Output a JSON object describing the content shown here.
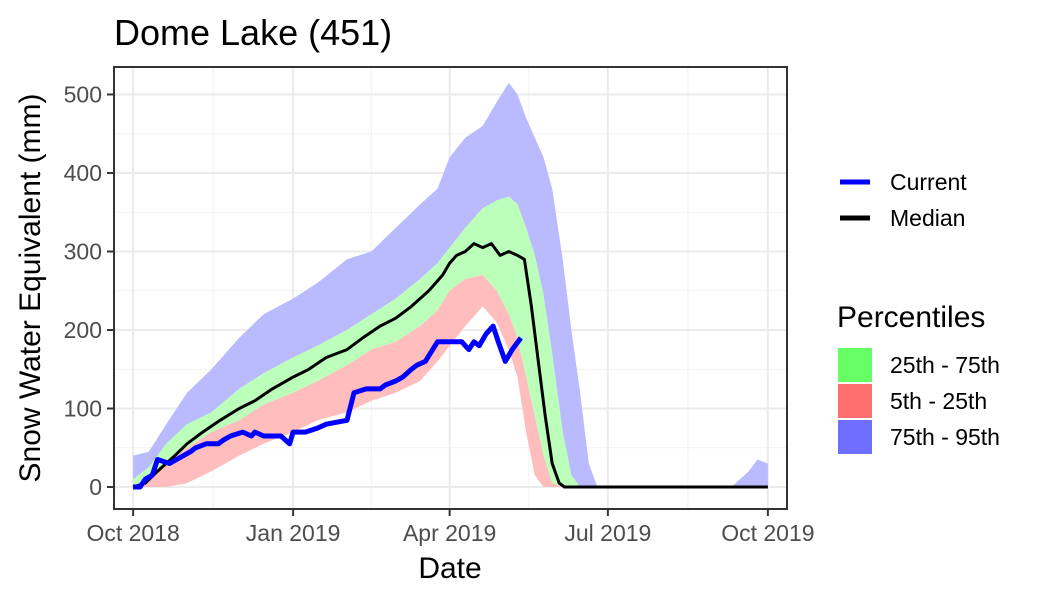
{
  "chart_data": {
    "type": "line",
    "title": "Dome Lake (451)",
    "xlabel": "Date",
    "ylabel": "Snow Water Equivalent (mm)",
    "xlim": [
      "2018-09-20",
      "2019-10-12"
    ],
    "ylim": [
      -28,
      535
    ],
    "x_ticks": [
      "2018-10-01",
      "2019-01-01",
      "2019-04-01",
      "2019-07-01",
      "2019-10-01"
    ],
    "x_tick_labels": [
      "Oct 2018",
      "Jan 2019",
      "Apr 2019",
      "Jul 2019",
      "Oct 2019"
    ],
    "y_ticks": [
      0,
      100,
      200,
      300,
      400,
      500
    ],
    "y_tick_labels": [
      "0",
      "100",
      "200",
      "300",
      "400",
      "500"
    ],
    "grid": true,
    "legend_placement": "right",
    "lines_legend": [
      {
        "label": "Current",
        "color": "#0000ff"
      },
      {
        "label": "Median",
        "color": "#000000"
      }
    ],
    "bands_legend_title": "Percentiles",
    "bands_legend": [
      {
        "label": "25th - 75th",
        "color": "#66ff66"
      },
      {
        "label": "5th - 25th",
        "color": "#ff6f6f"
      },
      {
        "label": "75th - 95th",
        "color": "#6f6fff"
      }
    ],
    "band_colors": {
      "p75_95": "#babaff",
      "p25_75": "#bbffbb",
      "p5_25": "#ffbdbd"
    },
    "bands": {
      "x": [
        "2018-10-01",
        "2018-10-10",
        "2018-10-20",
        "2018-11-01",
        "2018-11-15",
        "2018-12-01",
        "2018-12-15",
        "2019-01-01",
        "2019-01-15",
        "2019-02-01",
        "2019-02-15",
        "2019-03-01",
        "2019-03-15",
        "2019-03-25",
        "2019-04-01",
        "2019-04-10",
        "2019-04-20",
        "2019-04-28",
        "2019-05-05",
        "2019-05-10",
        "2019-05-15",
        "2019-05-20",
        "2019-05-25",
        "2019-05-30",
        "2019-06-05",
        "2019-06-10",
        "2019-06-15",
        "2019-06-20",
        "2019-06-25"
      ],
      "p95": [
        40,
        45,
        80,
        120,
        150,
        190,
        220,
        240,
        260,
        290,
        300,
        330,
        360,
        380,
        420,
        445,
        460,
        490,
        515,
        500,
        470,
        445,
        420,
        380,
        290,
        200,
        120,
        30,
        0
      ],
      "p75": [
        10,
        25,
        55,
        80,
        95,
        125,
        145,
        165,
        180,
        200,
        220,
        240,
        265,
        285,
        305,
        330,
        355,
        365,
        370,
        360,
        330,
        295,
        245,
        170,
        70,
        15,
        0,
        0,
        0
      ],
      "p25": [
        0,
        10,
        30,
        50,
        70,
        85,
        105,
        120,
        135,
        155,
        175,
        185,
        205,
        225,
        250,
        265,
        270,
        250,
        220,
        190,
        140,
        90,
        40,
        5,
        0,
        0,
        0,
        0,
        0
      ],
      "p5": [
        0,
        0,
        0,
        5,
        20,
        40,
        55,
        70,
        85,
        95,
        110,
        120,
        135,
        160,
        180,
        205,
        230,
        210,
        175,
        140,
        70,
        15,
        0,
        0,
        0,
        0,
        0,
        0,
        0
      ]
    },
    "late_band": {
      "x": [
        "2019-09-10",
        "2019-09-20",
        "2019-09-25",
        "2019-10-01"
      ],
      "p95": [
        0,
        20,
        35,
        30
      ],
      "p75": [
        0,
        0,
        0,
        0
      ]
    },
    "series": [
      {
        "name": "Current",
        "color": "#0000ff",
        "x": [
          "2018-10-01",
          "2018-10-05",
          "2018-10-08",
          "2018-10-12",
          "2018-10-15",
          "2018-10-22",
          "2018-10-26",
          "2018-11-03",
          "2018-11-06",
          "2018-11-12",
          "2018-11-19",
          "2018-11-22",
          "2018-11-26",
          "2018-12-03",
          "2018-12-08",
          "2018-12-10",
          "2018-12-15",
          "2018-12-25",
          "2018-12-30",
          "2019-01-01",
          "2019-01-08",
          "2019-01-15",
          "2019-01-20",
          "2019-02-01",
          "2019-02-05",
          "2019-02-12",
          "2019-02-20",
          "2019-02-23",
          "2019-03-01",
          "2019-03-05",
          "2019-03-10",
          "2019-03-13",
          "2019-03-18",
          "2019-03-25",
          "2019-04-01",
          "2019-04-08",
          "2019-04-12",
          "2019-04-15",
          "2019-04-18",
          "2019-04-22",
          "2019-04-26",
          "2019-04-29",
          "2019-05-03",
          "2019-05-07",
          "2019-05-12"
        ],
        "y": [
          0,
          0,
          10,
          15,
          35,
          30,
          35,
          45,
          50,
          55,
          55,
          60,
          65,
          70,
          65,
          70,
          65,
          65,
          55,
          70,
          70,
          75,
          80,
          85,
          120,
          125,
          125,
          130,
          135,
          140,
          150,
          155,
          160,
          185,
          185,
          185,
          175,
          185,
          180,
          195,
          205,
          185,
          160,
          175,
          190
        ]
      },
      {
        "name": "Median",
        "color": "#000000",
        "x": [
          "2018-10-01",
          "2018-10-08",
          "2018-10-15",
          "2018-10-25",
          "2018-11-01",
          "2018-11-10",
          "2018-11-20",
          "2018-12-01",
          "2018-12-10",
          "2018-12-20",
          "2019-01-01",
          "2019-01-10",
          "2019-01-20",
          "2019-02-01",
          "2019-02-10",
          "2019-02-20",
          "2019-03-01",
          "2019-03-10",
          "2019-03-20",
          "2019-03-28",
          "2019-04-01",
          "2019-04-05",
          "2019-04-10",
          "2019-04-15",
          "2019-04-20",
          "2019-04-25",
          "2019-04-30",
          "2019-05-05",
          "2019-05-10",
          "2019-05-14",
          "2019-05-18",
          "2019-05-22",
          "2019-05-26",
          "2019-05-30",
          "2019-06-03",
          "2019-06-06",
          "2019-06-10",
          "2019-06-15",
          "2019-07-01",
          "2019-10-01"
        ],
        "y": [
          0,
          5,
          20,
          40,
          55,
          70,
          85,
          100,
          110,
          125,
          140,
          150,
          165,
          175,
          190,
          205,
          215,
          230,
          250,
          270,
          285,
          295,
          300,
          310,
          305,
          310,
          295,
          300,
          295,
          290,
          230,
          160,
          90,
          30,
          5,
          0,
          0,
          0,
          0,
          0
        ]
      }
    ]
  }
}
